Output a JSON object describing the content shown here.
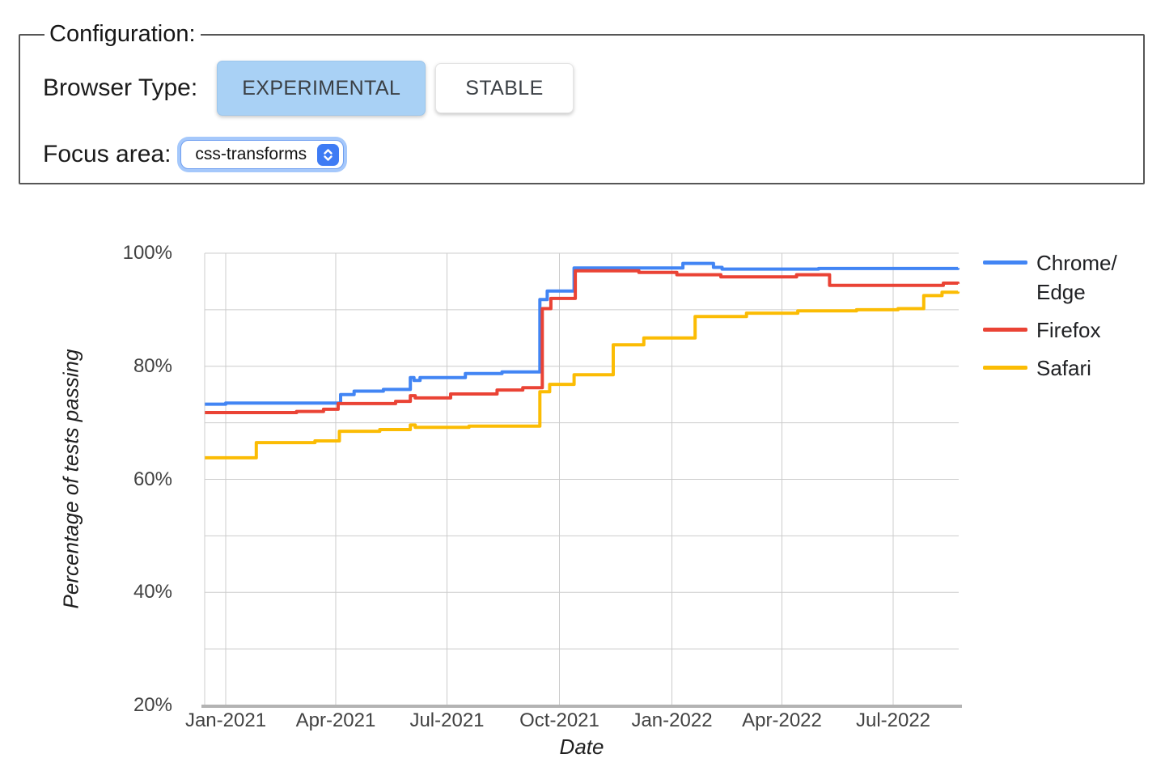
{
  "config": {
    "legend": "Configuration:",
    "browser_type_label": "Browser Type:",
    "browser_type_options": [
      "EXPERIMENTAL",
      "STABLE"
    ],
    "selected_browser_type": "EXPERIMENTAL",
    "focus_area_label": "Focus area:",
    "focus_area_value": "css-transforms"
  },
  "chart_data": {
    "type": "line",
    "line_style": "step-after",
    "title": "",
    "xlabel": "Date",
    "ylabel": "Percentage of tests passing",
    "ylim": [
      20,
      100
    ],
    "y_ticks": [
      20,
      40,
      60,
      80,
      100
    ],
    "y_grid": [
      30,
      40,
      50,
      60,
      70,
      80,
      90,
      100
    ],
    "y_tick_suffix": "%",
    "x_range": [
      "2020-12-15",
      "2022-08-23"
    ],
    "x_ticks": [
      {
        "label": "Jan-2021",
        "date": "2021-01-01"
      },
      {
        "label": "Apr-2021",
        "date": "2021-04-01"
      },
      {
        "label": "Jul-2021",
        "date": "2021-07-01"
      },
      {
        "label": "Oct-2021",
        "date": "2021-10-01"
      },
      {
        "label": "Jan-2022",
        "date": "2022-01-01"
      },
      {
        "label": "Apr-2022",
        "date": "2022-04-01"
      },
      {
        "label": "Jul-2022",
        "date": "2022-07-01"
      }
    ],
    "grid_color": "#cccccc",
    "axis_line_color": "#b3b3b3",
    "tick_label_color": "#424242",
    "legend_position": "right",
    "series": [
      {
        "name": "Chrome/Edge",
        "legend_lines": [
          "Chrome/",
          "Edge"
        ],
        "color": "#4285F4",
        "points": [
          [
            "2020-12-15",
            73.3
          ],
          [
            "2021-01-01",
            73.5
          ],
          [
            "2021-04-05",
            75.0
          ],
          [
            "2021-04-16",
            75.6
          ],
          [
            "2021-05-10",
            75.9
          ],
          [
            "2021-06-01",
            78.0
          ],
          [
            "2021-06-04",
            77.5
          ],
          [
            "2021-06-09",
            78.0
          ],
          [
            "2021-07-16",
            78.7
          ],
          [
            "2021-08-15",
            79.0
          ],
          [
            "2021-09-15",
            91.8
          ],
          [
            "2021-09-21",
            93.3
          ],
          [
            "2021-10-13",
            97.4
          ],
          [
            "2022-01-10",
            98.2
          ],
          [
            "2022-02-04",
            97.5
          ],
          [
            "2022-02-11",
            97.2
          ],
          [
            "2022-05-01",
            97.3
          ],
          [
            "2022-08-23",
            97.4
          ]
        ]
      },
      {
        "name": "Firefox",
        "legend_lines": [
          "Firefox"
        ],
        "color": "#EA4335",
        "points": [
          [
            "2020-12-15",
            71.8
          ],
          [
            "2021-02-28",
            72.0
          ],
          [
            "2021-03-22",
            72.4
          ],
          [
            "2021-04-03",
            73.4
          ],
          [
            "2021-05-20",
            73.8
          ],
          [
            "2021-06-01",
            74.8
          ],
          [
            "2021-06-05",
            74.4
          ],
          [
            "2021-07-04",
            75.1
          ],
          [
            "2021-08-11",
            75.8
          ],
          [
            "2021-09-01",
            76.2
          ],
          [
            "2021-09-17",
            90.2
          ],
          [
            "2021-09-24",
            92.0
          ],
          [
            "2021-10-14",
            96.9
          ],
          [
            "2021-12-05",
            96.6
          ],
          [
            "2022-01-05",
            96.2
          ],
          [
            "2022-02-10",
            95.8
          ],
          [
            "2022-04-13",
            96.2
          ],
          [
            "2022-05-10",
            94.3
          ],
          [
            "2022-08-11",
            94.7
          ],
          [
            "2022-08-23",
            94.6
          ]
        ]
      },
      {
        "name": "Safari",
        "legend_lines": [
          "Safari"
        ],
        "color": "#FBBC04",
        "points": [
          [
            "2020-12-15",
            63.8
          ],
          [
            "2021-01-26",
            66.5
          ],
          [
            "2021-03-15",
            66.8
          ],
          [
            "2021-04-04",
            68.5
          ],
          [
            "2021-05-07",
            68.8
          ],
          [
            "2021-06-01",
            69.6
          ],
          [
            "2021-06-05",
            69.2
          ],
          [
            "2021-07-19",
            69.4
          ],
          [
            "2021-09-15",
            75.5
          ],
          [
            "2021-09-23",
            76.8
          ],
          [
            "2021-10-13",
            78.5
          ],
          [
            "2021-11-14",
            83.8
          ],
          [
            "2021-12-09",
            85.0
          ],
          [
            "2022-01-20",
            88.8
          ],
          [
            "2022-03-03",
            89.4
          ],
          [
            "2022-04-14",
            89.8
          ],
          [
            "2022-06-01",
            90.0
          ],
          [
            "2022-07-05",
            90.2
          ],
          [
            "2022-07-26",
            92.5
          ],
          [
            "2022-08-10",
            93.1
          ],
          [
            "2022-08-23",
            93.2
          ]
        ]
      }
    ]
  }
}
